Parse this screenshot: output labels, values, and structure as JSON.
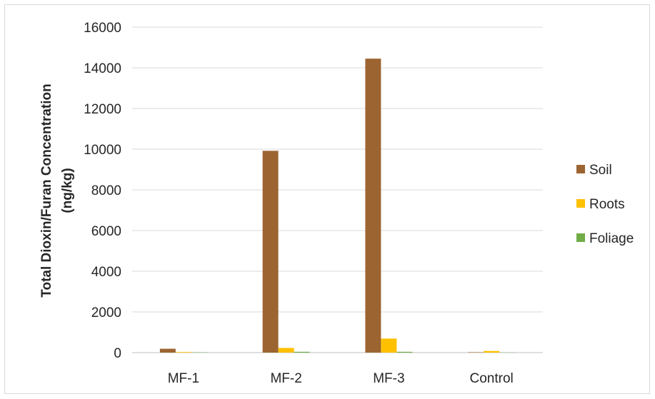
{
  "chart_data": {
    "type": "bar",
    "categories": [
      "MF-1",
      "MF-2",
      "MF-3",
      "Control"
    ],
    "series": [
      {
        "name": "Soil",
        "color": "#9c6430",
        "values": [
          190,
          9920,
          14450,
          20
        ]
      },
      {
        "name": "Roots",
        "color": "#ffc000",
        "values": [
          30,
          230,
          690,
          80
        ]
      },
      {
        "name": "Foliage",
        "color": "#70ad47",
        "values": [
          15,
          40,
          40,
          10
        ]
      }
    ],
    "ylabel_line1": "Total Dioxin/Furan  Concentration",
    "ylabel_line2": "(ng/kg)",
    "ylim": [
      0,
      16000
    ],
    "yticks": [
      0,
      2000,
      4000,
      6000,
      8000,
      10000,
      12000,
      14000,
      16000
    ],
    "grid": true,
    "legend_position": "right"
  }
}
